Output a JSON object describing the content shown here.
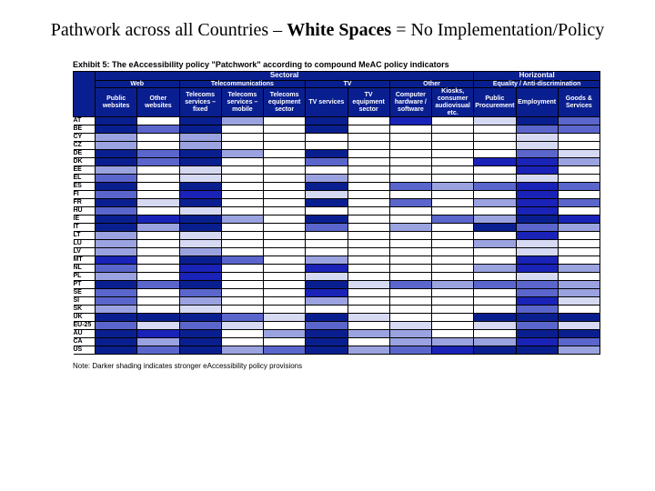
{
  "title_plain1": "Pathwork across all Countries – ",
  "title_bold": "White Spaces",
  "title_plain2": " = No Implementation/Policy",
  "exhibit_title": "Exhibit 5: The eAccessibility policy \"Patchwork\" according to compound MeAC policy indicators",
  "note": "Note: Darker shading indicates stronger eAccessibility policy provisions",
  "header_top": {
    "sectoral": "Sectoral",
    "horizontal": "Horizontal"
  },
  "header_groups": {
    "web": "Web",
    "telecom": "Telecommunications",
    "tv": "TV",
    "other": "Other",
    "equality": "Equality / Anti-discrimination"
  },
  "columns": [
    "Public websites",
    "Other websites",
    "Telecoms services – fixed",
    "Telecoms services – mobile",
    "Telecoms equipment sector",
    "TV services",
    "TV equipment sector",
    "Computer hardware / software",
    "Kiosks, consumer audiovisual etc.",
    "Public Procurement",
    "Employment",
    "Goods & Services"
  ],
  "row_labels": [
    "AT",
    "BE",
    "CY",
    "CZ",
    "DE",
    "DK",
    "EE",
    "EL",
    "ES",
    "FI",
    "FR",
    "HU",
    "IE",
    "IT",
    "LT",
    "LU",
    "LV",
    "MT",
    "NL",
    "PL",
    "PT",
    "SE",
    "SI",
    "SK",
    "UK",
    "EU-25",
    "AU",
    "CA",
    "US"
  ],
  "palette": {
    "0": "#ffffff",
    "1": "#d6d9f2",
    "2": "#9aa3e0",
    "3": "#5b66cc",
    "4": "#1a23b8",
    "5": "#0a1f8f"
  },
  "header_bg": "#0a1f8f",
  "grid": [
    [
      5,
      0,
      5,
      2,
      0,
      5,
      0,
      4,
      0,
      1,
      5,
      3
    ],
    [
      5,
      3,
      5,
      0,
      0,
      5,
      0,
      0,
      0,
      0,
      3,
      3
    ],
    [
      2,
      0,
      2,
      0,
      0,
      0,
      0,
      0,
      0,
      0,
      1,
      0
    ],
    [
      2,
      0,
      2,
      0,
      0,
      0,
      0,
      0,
      0,
      0,
      1,
      0
    ],
    [
      5,
      3,
      5,
      2,
      0,
      5,
      0,
      0,
      0,
      0,
      3,
      1
    ],
    [
      5,
      3,
      5,
      0,
      0,
      3,
      0,
      0,
      0,
      4,
      4,
      2
    ],
    [
      2,
      0,
      1,
      0,
      0,
      0,
      0,
      0,
      0,
      0,
      4,
      0
    ],
    [
      3,
      0,
      1,
      0,
      0,
      2,
      0,
      0,
      0,
      0,
      1,
      0
    ],
    [
      5,
      0,
      5,
      0,
      0,
      5,
      0,
      3,
      2,
      3,
      4,
      3
    ],
    [
      3,
      0,
      4,
      0,
      0,
      1,
      0,
      0,
      0,
      0,
      4,
      0
    ],
    [
      5,
      1,
      5,
      0,
      0,
      5,
      0,
      3,
      0,
      2,
      4,
      3
    ],
    [
      3,
      0,
      1,
      0,
      0,
      0,
      0,
      0,
      0,
      0,
      4,
      0
    ],
    [
      5,
      4,
      5,
      2,
      0,
      5,
      0,
      0,
      3,
      2,
      5,
      4
    ],
    [
      5,
      2,
      5,
      0,
      0,
      3,
      0,
      2,
      0,
      5,
      3,
      2
    ],
    [
      2,
      0,
      1,
      0,
      0,
      0,
      0,
      0,
      0,
      0,
      4,
      0
    ],
    [
      2,
      0,
      1,
      0,
      0,
      0,
      0,
      0,
      0,
      2,
      1,
      0
    ],
    [
      2,
      0,
      2,
      0,
      0,
      0,
      0,
      0,
      0,
      0,
      1,
      0
    ],
    [
      4,
      0,
      5,
      3,
      0,
      2,
      0,
      0,
      0,
      0,
      4,
      0
    ],
    [
      3,
      0,
      4,
      0,
      0,
      4,
      0,
      0,
      0,
      2,
      4,
      2
    ],
    [
      2,
      0,
      4,
      0,
      0,
      1,
      0,
      0,
      0,
      0,
      1,
      0
    ],
    [
      5,
      3,
      5,
      0,
      0,
      5,
      1,
      3,
      2,
      3,
      3,
      2
    ],
    [
      3,
      0,
      3,
      0,
      0,
      4,
      0,
      0,
      0,
      0,
      3,
      2
    ],
    [
      3,
      0,
      2,
      0,
      0,
      2,
      0,
      0,
      0,
      0,
      4,
      1
    ],
    [
      2,
      0,
      1,
      0,
      0,
      0,
      0,
      0,
      0,
      0,
      3,
      0
    ],
    [
      5,
      5,
      5,
      3,
      1,
      5,
      1,
      0,
      0,
      5,
      5,
      5
    ],
    [
      3,
      1,
      3,
      1,
      0,
      3,
      0,
      1,
      0,
      1,
      3,
      1
    ],
    [
      5,
      4,
      5,
      0,
      2,
      5,
      2,
      2,
      0,
      0,
      5,
      5
    ],
    [
      5,
      2,
      5,
      0,
      0,
      5,
      0,
      2,
      2,
      2,
      4,
      3
    ],
    [
      5,
      3,
      5,
      2,
      3,
      5,
      2,
      3,
      4,
      5,
      5,
      2
    ]
  ]
}
